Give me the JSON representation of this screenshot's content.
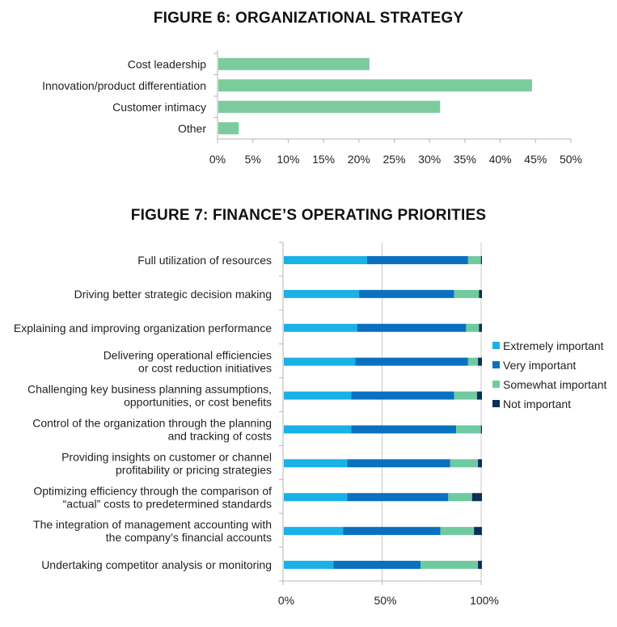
{
  "chart_data": [
    {
      "type": "bar",
      "orientation": "horizontal",
      "title": "FIGURE 6: ORGANIZATIONAL STRATEGY",
      "categories": [
        "Cost leadership",
        "Innovation/product differentiation",
        "Customer intimacy",
        "Other"
      ],
      "values": [
        21.5,
        44.5,
        31.5,
        3
      ],
      "xlim": [
        0,
        50
      ],
      "xticks": [
        "0%",
        "5%",
        "10%",
        "15%",
        "20%",
        "25%",
        "30%",
        "35%",
        "40%",
        "45%",
        "50%"
      ],
      "color": "#7ccb9c",
      "grid": false
    },
    {
      "type": "bar",
      "orientation": "horizontal",
      "stacked": "percent",
      "title": "FIGURE 7: FINANCE’S OPERATING PRIORITIES",
      "categories": [
        [
          "Full utilization of resources"
        ],
        [
          "Driving better strategic decision making"
        ],
        [
          "Explaining and improving organization performance"
        ],
        [
          "Delivering operational efficiencies",
          "or cost reduction initiatives"
        ],
        [
          "Challenging key business planning assumptions,",
          "opportunities, or cost benefits"
        ],
        [
          "Control of the organization through the planning",
          "and tracking of costs"
        ],
        [
          "Providing insights on customer or channel",
          "profitability or pricing strategies"
        ],
        [
          "Optimizing efficiency through the comparison of",
          "“actual” costs to predetermined standards"
        ],
        [
          "The integration of management accounting with",
          "the company’s financial accounts"
        ],
        [
          "Undertaking competitor analysis or monitoring"
        ]
      ],
      "series": [
        {
          "name": "Extremely important",
          "color": "#1ab1e6",
          "values": [
            42,
            38,
            37,
            36,
            34,
            34,
            32,
            32,
            30,
            25
          ]
        },
        {
          "name": "Very important",
          "color": "#0a70c0",
          "values": [
            51,
            48,
            55,
            57,
            52,
            53,
            52,
            51,
            49,
            44
          ]
        },
        {
          "name": "Somewhat important",
          "color": "#6fcaa0",
          "values": [
            6.5,
            12.5,
            6.5,
            5,
            11.5,
            12.5,
            14,
            12,
            17,
            29
          ]
        },
        {
          "name": "Not important",
          "color": "#0b2f5b",
          "values": [
            0.5,
            1.5,
            1.5,
            2,
            2.5,
            0.5,
            2,
            5,
            4,
            2
          ]
        }
      ],
      "xlim": [
        0,
        100
      ],
      "xticks": [
        "0%",
        "50%",
        "100%"
      ],
      "grid": true,
      "legend": "right"
    }
  ]
}
